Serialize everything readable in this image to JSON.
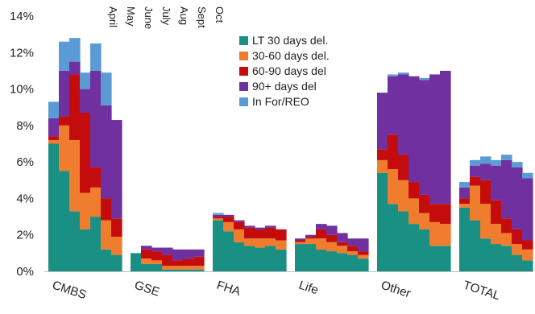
{
  "chart_data": {
    "type": "bar",
    "stacked": true,
    "title": "",
    "xlabel": "",
    "ylabel": "",
    "ylim": [
      0,
      14
    ],
    "y_ticks": [
      "0%",
      "2%",
      "4%",
      "6%",
      "8%",
      "10%",
      "12%",
      "14%"
    ],
    "grid": false,
    "legend_position": "top-center",
    "months": [
      "April",
      "May",
      "June",
      "July",
      "Aug",
      "Sept",
      "Oct"
    ],
    "series": [
      {
        "name": "LT 30 days del.",
        "color": "#1a8f83"
      },
      {
        "name": "30-60 days del.",
        "color": "#ef7d2d"
      },
      {
        "name": "60-90 days del",
        "color": "#c40c0c"
      },
      {
        "name": "90+ days del",
        "color": "#7030a0"
      },
      {
        "name": "In For/REO",
        "color": "#5b9bd5"
      }
    ],
    "groups": [
      {
        "category": "CMBS",
        "stacks": [
          [
            7.0,
            0.2,
            0.2,
            1.0,
            0.9
          ],
          [
            5.5,
            2.5,
            0.5,
            2.5,
            1.6
          ],
          [
            3.3,
            3.9,
            3.6,
            0.7,
            1.3
          ],
          [
            2.3,
            2.0,
            4.4,
            1.3,
            0.9
          ],
          [
            3.0,
            1.6,
            1.1,
            5.3,
            1.5
          ],
          [
            1.2,
            1.6,
            1.2,
            5.1,
            1.8
          ],
          [
            0.9,
            1.0,
            1.0,
            5.4,
            0.0
          ]
        ]
      },
      {
        "category": "GSE",
        "stacks": [
          [
            1.0,
            0.0,
            0.0,
            0.0,
            0.0
          ],
          [
            0.4,
            0.3,
            0.5,
            0.2,
            0.0
          ],
          [
            0.4,
            0.2,
            0.5,
            0.2,
            0.0
          ],
          [
            0.1,
            0.2,
            0.6,
            0.4,
            0.0
          ],
          [
            0.1,
            0.2,
            0.3,
            0.6,
            0.0
          ],
          [
            0.1,
            0.2,
            0.4,
            0.5,
            0.0
          ],
          [
            0.1,
            0.2,
            0.5,
            0.4,
            0.0
          ]
        ]
      },
      {
        "category": "FHA",
        "stacks": [
          [
            2.8,
            0.1,
            0.1,
            0.1,
            0.1
          ],
          [
            2.2,
            0.5,
            0.3,
            0.1,
            0.0
          ],
          [
            1.6,
            0.7,
            0.4,
            0.1,
            0.0
          ],
          [
            1.4,
            0.4,
            0.6,
            0.1,
            0.0
          ],
          [
            1.3,
            0.5,
            0.5,
            0.1,
            0.0
          ],
          [
            1.4,
            0.4,
            0.6,
            0.1,
            0.0
          ],
          [
            1.2,
            0.5,
            0.6,
            0.0,
            0.0
          ]
        ]
      },
      {
        "category": "Life",
        "stacks": [
          [
            1.5,
            0.1,
            0.1,
            0.1,
            0.0
          ],
          [
            1.5,
            0.3,
            0.1,
            0.1,
            0.0
          ],
          [
            1.2,
            0.6,
            0.5,
            0.3,
            0.0
          ],
          [
            1.1,
            0.5,
            0.4,
            0.5,
            0.0
          ],
          [
            1.0,
            0.4,
            0.2,
            0.5,
            0.0
          ],
          [
            0.9,
            0.2,
            0.3,
            0.4,
            0.0
          ],
          [
            0.7,
            0.2,
            0.2,
            0.7,
            0.0
          ]
        ]
      },
      {
        "category": "Other",
        "stacks": [
          [
            5.4,
            0.7,
            0.6,
            3.1,
            0.0
          ],
          [
            3.7,
            1.9,
            1.9,
            3.2,
            0.1
          ],
          [
            3.3,
            1.7,
            1.4,
            4.4,
            0.1
          ],
          [
            2.6,
            1.4,
            0.9,
            5.8,
            0.0
          ],
          [
            2.3,
            0.9,
            1.0,
            6.3,
            0.1
          ],
          [
            1.4,
            1.3,
            1.0,
            7.1,
            0.0
          ],
          [
            1.4,
            1.2,
            1.1,
            7.3,
            0.0
          ]
        ]
      },
      {
        "category": "TOTAL",
        "stacks": [
          [
            3.5,
            0.2,
            0.3,
            0.6,
            0.3
          ],
          [
            2.8,
            1.9,
            0.5,
            0.6,
            0.3
          ],
          [
            1.8,
            1.9,
            1.3,
            0.9,
            0.4
          ],
          [
            1.5,
            1.1,
            1.3,
            1.9,
            0.3
          ],
          [
            1.4,
            0.7,
            0.8,
            3.2,
            0.3
          ],
          [
            0.9,
            0.6,
            0.8,
            3.4,
            0.3
          ],
          [
            0.6,
            0.6,
            0.5,
            3.4,
            0.3
          ]
        ]
      }
    ]
  }
}
